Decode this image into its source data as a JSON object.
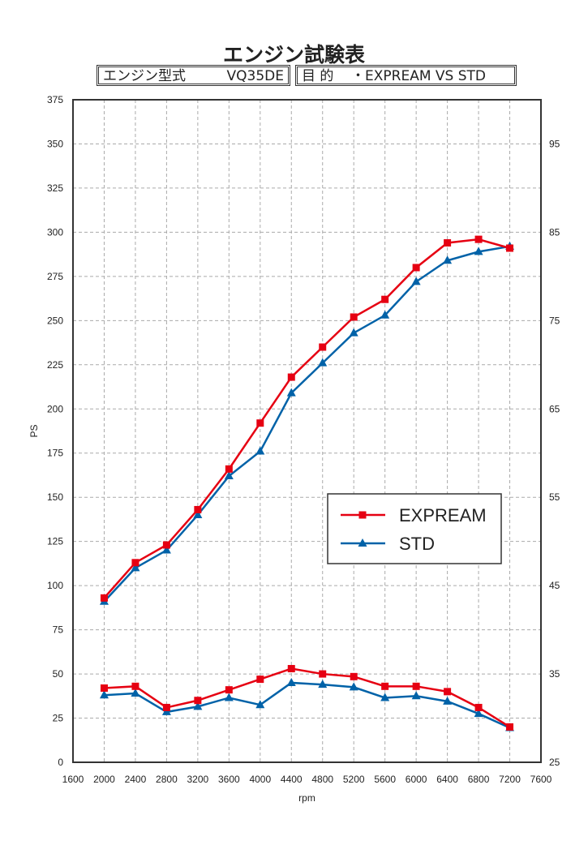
{
  "header": {
    "title": "エンジン試験表",
    "engine_label": "エンジン型式",
    "engine_value": "VQ35DE",
    "purpose_label": "目 的",
    "purpose_value": "・EXPREAM VS STD"
  },
  "chart_data": {
    "type": "line",
    "xlabel": "rpm",
    "ylabel": "PS",
    "y2label": "",
    "xlim": [
      1600,
      7600
    ],
    "ylim": [
      0,
      375
    ],
    "y2lim": [
      25,
      100
    ],
    "xticks": [
      1600,
      2000,
      2400,
      2800,
      3200,
      3600,
      4000,
      4400,
      4800,
      5200,
      5600,
      6000,
      6400,
      6800,
      7200,
      7600
    ],
    "yticks": [
      0,
      25,
      50,
      75,
      100,
      125,
      150,
      175,
      200,
      225,
      250,
      275,
      300,
      325,
      350,
      375
    ],
    "y2ticks": [
      25,
      35,
      45,
      55,
      65,
      75,
      85,
      95
    ],
    "grid": true,
    "legend_position": "center-right",
    "x": [
      2000,
      2400,
      2800,
      3200,
      3600,
      4000,
      4400,
      4800,
      5200,
      5600,
      6000,
      6400,
      6800,
      7200
    ],
    "series": [
      {
        "name": "EXPREAM",
        "color": "#e60012",
        "marker": "square",
        "axis": "left",
        "values": [
          93,
          113,
          123,
          143,
          166,
          192,
          218,
          235,
          252,
          262,
          280,
          294,
          296,
          291
        ]
      },
      {
        "name": "STD",
        "color": "#0062a8",
        "marker": "triangle",
        "axis": "left",
        "values": [
          91,
          110,
          120,
          140,
          162,
          176,
          209,
          226,
          243,
          253,
          272,
          284,
          289,
          292
        ]
      },
      {
        "name": "EXPREAM",
        "color": "#e60012",
        "marker": "square",
        "axis": "right",
        "values": [
          33.4,
          33.6,
          31.2,
          32,
          33.2,
          34.4,
          35.6,
          35,
          34.7,
          33.6,
          33.6,
          33,
          31.2,
          29
        ]
      },
      {
        "name": "STD",
        "color": "#0062a8",
        "marker": "triangle",
        "axis": "right",
        "values": [
          32.6,
          32.8,
          30.7,
          31.3,
          32.3,
          31.5,
          34,
          33.8,
          33.5,
          32.3,
          32.5,
          31.9,
          30.5,
          28.9
        ]
      }
    ]
  }
}
